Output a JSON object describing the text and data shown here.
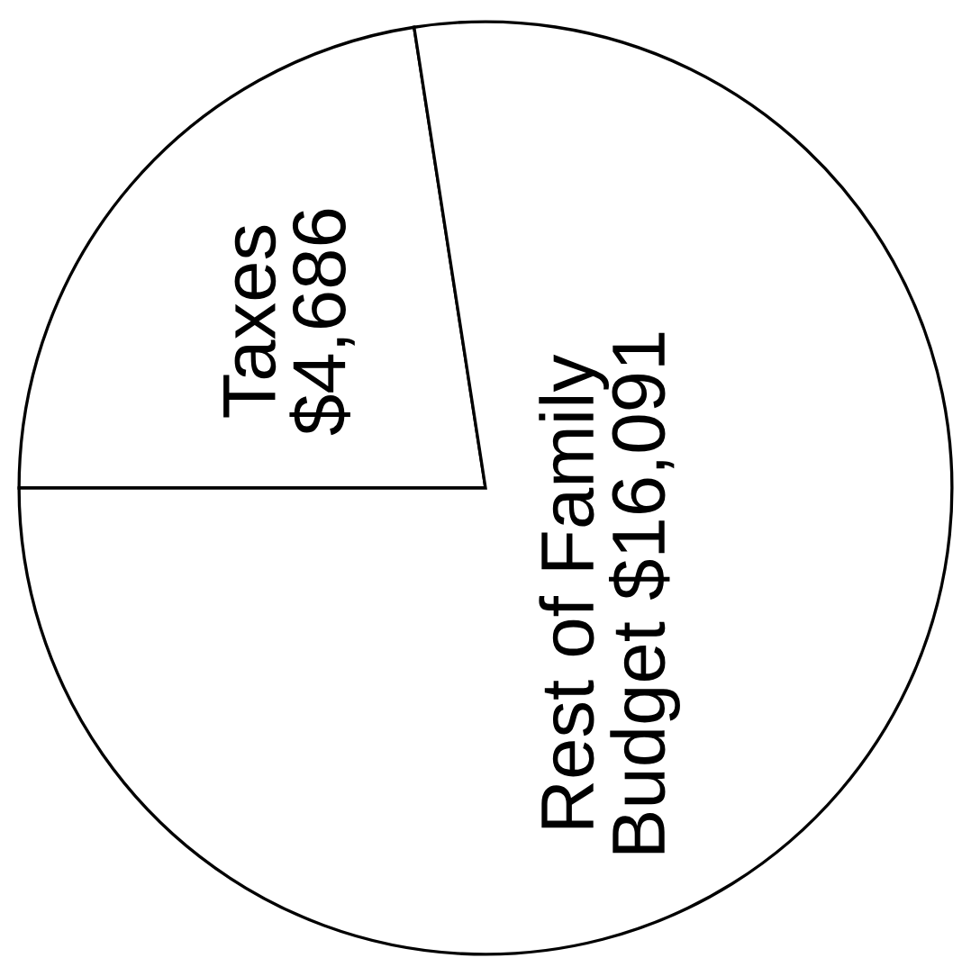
{
  "chart_data": {
    "type": "pie",
    "categories": [
      "Taxes",
      "Rest of Family\nBudget"
    ],
    "values": [
      4686,
      16091
    ],
    "value_labels": [
      "$4,686",
      "$16,091"
    ],
    "colors": [
      "#ffffff",
      "#ffffff"
    ]
  }
}
